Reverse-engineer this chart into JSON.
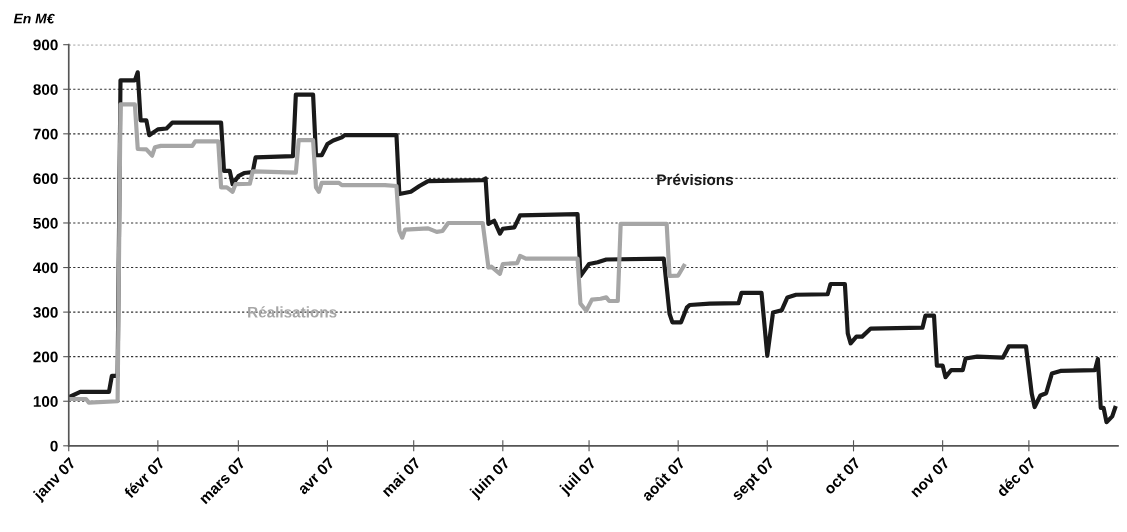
{
  "chart_data": {
    "type": "step",
    "title": "En M€",
    "xlim": [
      "2007-01-01",
      "2008-01-01"
    ],
    "xticks": [
      {
        "value": "2007-01-01",
        "label": "janv 07"
      },
      {
        "value": "2007-02-01",
        "label": "févr 07"
      },
      {
        "value": "2007-03-01",
        "label": "mars 07"
      },
      {
        "value": "2007-04-01",
        "label": "avr 07"
      },
      {
        "value": "2007-05-01",
        "label": "mai 07"
      },
      {
        "value": "2007-06-01",
        "label": "juin 07"
      },
      {
        "value": "2007-07-01",
        "label": "juil 07"
      },
      {
        "value": "2007-08-01",
        "label": "août 07"
      },
      {
        "value": "2007-09-01",
        "label": "sept 07"
      },
      {
        "value": "2007-10-01",
        "label": "oct 07"
      },
      {
        "value": "2007-11-01",
        "label": "nov 07"
      },
      {
        "value": "2007-12-01",
        "label": "déc 07"
      }
    ],
    "ylim": [
      0,
      900
    ],
    "yticks": [
      0,
      100,
      200,
      300,
      400,
      500,
      600,
      700,
      800,
      900
    ],
    "grid": "y",
    "legend": false,
    "marker": "none",
    "line_style": "solid",
    "series": [
      {
        "name": "Prévisions",
        "color": "#1a1a1a",
        "x": [
          "2007-01-01",
          "2007-01-05",
          "2007-01-15",
          "2007-01-16",
          "2007-01-18",
          "2007-01-19",
          "2007-01-24",
          "2007-01-25",
          "2007-01-26",
          "2007-01-28",
          "2007-01-29",
          "2007-02-01",
          "2007-02-04",
          "2007-02-06",
          "2007-02-23",
          "2007-02-24",
          "2007-02-26",
          "2007-02-27",
          "2007-03-01",
          "2007-03-03",
          "2007-03-06",
          "2007-03-07",
          "2007-03-20",
          "2007-03-21",
          "2007-03-27",
          "2007-03-28",
          "2007-03-30",
          "2007-04-01",
          "2007-04-03",
          "2007-04-06",
          "2007-04-07",
          "2007-04-25",
          "2007-04-26",
          "2007-04-30",
          "2007-05-03",
          "2007-05-06",
          "2007-05-25",
          "2007-05-26",
          "2007-05-27",
          "2007-05-29",
          "2007-05-31",
          "2007-06-01",
          "2007-06-05",
          "2007-06-07",
          "2007-06-27",
          "2007-06-28",
          "2007-07-01",
          "2007-07-04",
          "2007-07-07",
          "2007-07-27",
          "2007-07-29",
          "2007-07-30",
          "2007-08-02",
          "2007-08-04",
          "2007-08-05",
          "2007-08-12",
          "2007-08-22",
          "2007-08-23",
          "2007-08-30",
          "2007-09-01",
          "2007-09-03",
          "2007-09-06",
          "2007-09-08",
          "2007-09-11",
          "2007-09-22",
          "2007-09-23",
          "2007-09-28",
          "2007-09-29",
          "2007-09-30",
          "2007-10-02",
          "2007-10-04",
          "2007-10-07",
          "2007-10-25",
          "2007-10-26",
          "2007-10-29",
          "2007-10-30",
          "2007-11-01",
          "2007-11-02",
          "2007-11-04",
          "2007-11-08",
          "2007-11-09",
          "2007-11-13",
          "2007-11-22",
          "2007-11-24",
          "2007-11-30",
          "2007-12-02",
          "2007-12-03",
          "2007-12-05",
          "2007-12-07",
          "2007-12-09",
          "2007-12-12",
          "2007-12-24",
          "2007-12-25",
          "2007-12-26",
          "2007-12-27",
          "2007-12-28",
          "2007-12-30",
          "2007-12-31"
        ],
        "values": [
          109,
          121,
          121,
          157,
          157,
          820,
          820,
          838,
          730,
          730,
          697,
          710,
          712,
          725,
          725,
          617,
          617,
          587,
          605,
          612,
          614,
          647,
          650,
          788,
          788,
          652,
          652,
          677,
          685,
          692,
          697,
          697,
          565,
          570,
          583,
          594,
          596,
          600,
          498,
          505,
          476,
          487,
          490,
          517,
          520,
          381,
          408,
          412,
          418,
          420,
          296,
          277,
          277,
          310,
          316,
          319,
          320,
          343,
          343,
          202,
          299,
          304,
          333,
          339,
          340,
          363,
          363,
          252,
          230,
          245,
          245,
          263,
          265,
          292,
          292,
          180,
          180,
          154,
          170,
          170,
          196,
          200,
          198,
          223,
          223,
          117,
          87,
          113,
          118,
          162,
          168,
          170,
          195,
          85,
          85,
          53,
          66,
          85
        ]
      },
      {
        "name": "Réalisations",
        "color": "#a6a6a6",
        "x": [
          "2007-01-01",
          "2007-01-07",
          "2007-01-08",
          "2007-01-18",
          "2007-01-19",
          "2007-01-24",
          "2007-01-25",
          "2007-01-28",
          "2007-01-30",
          "2007-01-31",
          "2007-02-02",
          "2007-02-13",
          "2007-02-14",
          "2007-02-22",
          "2007-02-23",
          "2007-02-25",
          "2007-02-27",
          "2007-02-28",
          "2007-03-05",
          "2007-03-06",
          "2007-03-21",
          "2007-03-22",
          "2007-03-27",
          "2007-03-28",
          "2007-03-29",
          "2007-03-30",
          "2007-04-05",
          "2007-04-06",
          "2007-04-21",
          "2007-04-25",
          "2007-04-26",
          "2007-04-27",
          "2007-04-28",
          "2007-05-06",
          "2007-05-09",
          "2007-05-11",
          "2007-05-13",
          "2007-05-25",
          "2007-05-27",
          "2007-05-28",
          "2007-05-31",
          "2007-06-01",
          "2007-06-06",
          "2007-06-07",
          "2007-06-09",
          "2007-06-27",
          "2007-06-28",
          "2007-06-30",
          "2007-07-02",
          "2007-07-05",
          "2007-07-07",
          "2007-07-08",
          "2007-07-11",
          "2007-07-12",
          "2007-07-28",
          "2007-07-29",
          "2007-08-01",
          "2007-08-03"
        ],
        "values": [
          105,
          105,
          97,
          100,
          766,
          766,
          666,
          665,
          651,
          670,
          673,
          673,
          683,
          683,
          580,
          580,
          570,
          587,
          588,
          616,
          613,
          686,
          686,
          580,
          570,
          590,
          590,
          585,
          585,
          583,
          482,
          467,
          485,
          488,
          480,
          482,
          500,
          500,
          400,
          402,
          386,
          408,
          410,
          426,
          420,
          420,
          319,
          303,
          328,
          330,
          333,
          325,
          325,
          498,
          498,
          381,
          382,
          404
        ]
      }
    ]
  }
}
